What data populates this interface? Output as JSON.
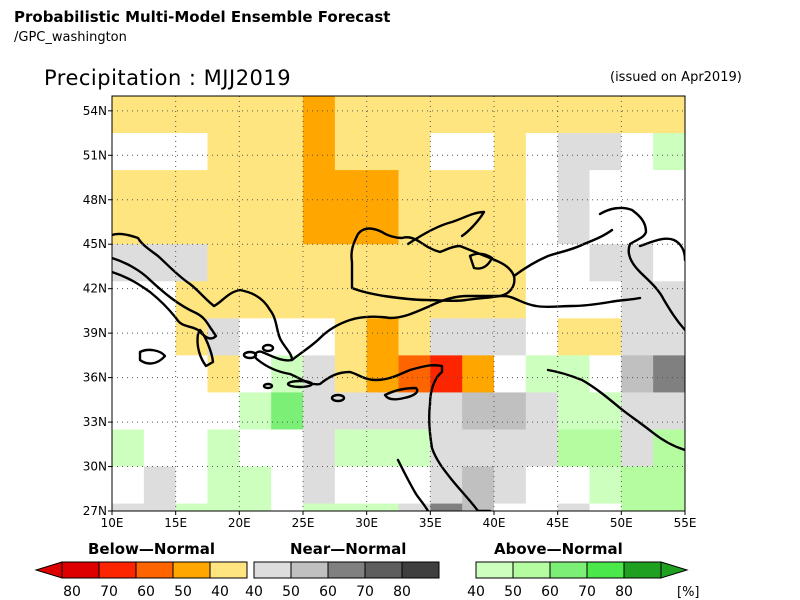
{
  "header": {
    "title": "Probabilistic Multi-Model Ensemble Forecast",
    "subtitle": "/GPC_washington"
  },
  "map": {
    "title": "Precipitation : MJJ2019",
    "issued": "(issued on Apr2019)",
    "region": {
      "lon_min": 10,
      "lon_max": 55,
      "lat_min": 27,
      "lat_max": 55
    },
    "grid_step_deg": 2.5,
    "lon_ticks": [
      "10E",
      "15E",
      "20E",
      "25E",
      "30E",
      "35E",
      "40E",
      "45E",
      "50E",
      "55E"
    ],
    "lat_ticks": [
      "27N",
      "30N",
      "33N",
      "36N",
      "39N",
      "42N",
      "45N",
      "48N",
      "51N",
      "54N"
    ],
    "grid_lines": "dotted",
    "category_colors": {
      "0": "#ffffff",
      "b40": "#ffe57f",
      "b50": "#ffa600",
      "b60": "#fe6501",
      "b70": "#fd2500",
      "b80": "#de0000",
      "n40": "#dddddd",
      "n50": "#c0c0c0",
      "n60": "#808080",
      "n70": "#5e5e5e",
      "n80": "#3f3f3f",
      "a40": "#cdffbe",
      "a50": "#b5fca0",
      "a60": "#7bef76",
      "a70": "#4ae84a",
      "a80": "#20a020"
    },
    "cells_rows_north_to_south": [
      [
        "b40",
        "b40",
        "b40",
        "b40",
        "b40",
        "b40",
        "b50",
        "b40",
        "b40",
        "b40",
        "b40",
        "b40",
        "b40",
        "b40",
        "b40",
        "b40",
        "b40",
        "b40"
      ],
      [
        "0",
        "0",
        "0",
        "b40",
        "b40",
        "b40",
        "b50",
        "b40",
        "b40",
        "b40",
        "0",
        "0",
        "b40",
        "0",
        "n40",
        "n40",
        "0",
        "a40"
      ],
      [
        "b40",
        "b40",
        "b40",
        "b40",
        "b40",
        "b40",
        "b50",
        "b50",
        "b50",
        "b40",
        "b40",
        "b40",
        "b40",
        "0",
        "n40",
        "0",
        "0",
        "0"
      ],
      [
        "b40",
        "b40",
        "b40",
        "b40",
        "b40",
        "b40",
        "b50",
        "b50",
        "b50",
        "b40",
        "b40",
        "b40",
        "b40",
        "0",
        "n40",
        "0",
        "0",
        "0"
      ],
      [
        "n40",
        "n40",
        "n40",
        "b40",
        "b40",
        "b40",
        "b40",
        "b40",
        "b40",
        "b40",
        "b40",
        "b40",
        "b40",
        "0",
        "0",
        "n40",
        "n40",
        "0"
      ],
      [
        "0",
        "0",
        "b40",
        "b40",
        "b40",
        "b40",
        "b40",
        "b40",
        "b40",
        "b40",
        "b40",
        "b40",
        "b40",
        "0",
        "0",
        "0",
        "n40",
        "n40"
      ],
      [
        "0",
        "0",
        "b40",
        "n40",
        "0",
        "0",
        "0",
        "b40",
        "b50",
        "b40",
        "n40",
        "n40",
        "n40",
        "0",
        "b40",
        "b40",
        "n40",
        "n40"
      ],
      [
        "0",
        "0",
        "0",
        "b40",
        "0",
        "a40",
        "n40",
        "b40",
        "b50",
        "b60",
        "b70",
        "b50",
        "0",
        "a40",
        "a40",
        "0",
        "n50",
        "n60"
      ],
      [
        "0",
        "0",
        "0",
        "0",
        "a40",
        "a60",
        "n40",
        "n40",
        "n40",
        "n40",
        "n40",
        "n50",
        "n50",
        "n40",
        "a40",
        "a40",
        "n40",
        "n40"
      ],
      [
        "a40",
        "0",
        "0",
        "a40",
        "0",
        "0",
        "n40",
        "a40",
        "a40",
        "a40",
        "n40",
        "n40",
        "n40",
        "n40",
        "a50",
        "a50",
        "n40",
        "a50"
      ],
      [
        "0",
        "n40",
        "0",
        "a40",
        "a40",
        "0",
        "n40",
        "0",
        "0",
        "0",
        "n40",
        "n50",
        "n40",
        "0",
        "0",
        "a40",
        "a50",
        "a50"
      ],
      [
        "n40",
        "n40",
        "a40",
        "a40",
        "a40",
        "0",
        "a40",
        "a40",
        "a40",
        "n40",
        "n60",
        "n50",
        "0",
        "0",
        "n40",
        "0",
        "a50",
        "a50"
      ],
      [
        "0",
        "a40",
        "a40",
        "a40",
        "a40",
        "a40",
        "n40",
        "a40",
        "n40",
        "n60",
        "n40",
        "n40",
        "n40",
        "0",
        "n60",
        "n50",
        "a40",
        "a50"
      ],
      [
        "n40",
        "a40",
        "a40",
        "a40",
        "a40",
        "a40",
        "0",
        "n40",
        "0",
        "n40",
        "n40",
        "n40",
        "n40",
        "n40",
        "n60",
        "n60",
        "n50",
        "a40"
      ]
    ]
  },
  "legends": [
    {
      "title": "Below—Normal",
      "labels": [
        "80",
        "70",
        "60",
        "50",
        "40"
      ],
      "colors": [
        "#de0000",
        "#fd2500",
        "#fe6501",
        "#ffa600",
        "#ffe57f"
      ],
      "arrow": "left"
    },
    {
      "title": "Near—Normal",
      "labels": [
        "40",
        "50",
        "60",
        "70",
        "80"
      ],
      "colors": [
        "#dddddd",
        "#c0c0c0",
        "#808080",
        "#5e5e5e",
        "#3f3f3f"
      ],
      "arrow": "none"
    },
    {
      "title": "Above—Normal",
      "labels": [
        "40",
        "50",
        "60",
        "70",
        "80"
      ],
      "colors": [
        "#cdffbe",
        "#b5fca0",
        "#7bef76",
        "#4ae84a",
        "#20a020"
      ],
      "arrow": "right",
      "unit": "[%]"
    }
  ]
}
